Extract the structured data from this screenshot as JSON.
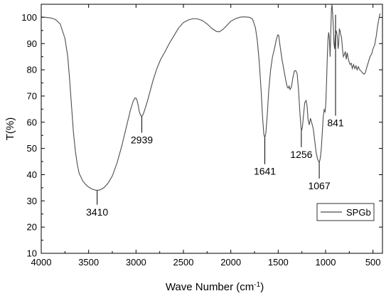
{
  "chart_data": {
    "type": "line",
    "title": "",
    "xlabel": "Wave Number (cm⁻¹)",
    "ylabel": "T(%)",
    "xlim": [
      4000,
      400
    ],
    "ylim": [
      10,
      105
    ],
    "x_ticks": [
      4000,
      3500,
      3000,
      2500,
      2000,
      1500,
      1000,
      500
    ],
    "y_ticks": [
      10,
      20,
      30,
      40,
      50,
      60,
      70,
      80,
      90,
      100
    ],
    "x_inverted": true,
    "grid": false,
    "legend_position": "right",
    "series": [
      {
        "name": "SPGb",
        "color": "#4d4d4d",
        "points": [
          [
            4000,
            100.2
          ],
          [
            3950,
            100.0
          ],
          [
            3900,
            99.8
          ],
          [
            3850,
            99.2
          ],
          [
            3800,
            97.5
          ],
          [
            3750,
            92.0
          ],
          [
            3720,
            85.0
          ],
          [
            3700,
            76.0
          ],
          [
            3680,
            66.0
          ],
          [
            3660,
            56.0
          ],
          [
            3640,
            49.0
          ],
          [
            3620,
            44.0
          ],
          [
            3600,
            40.5
          ],
          [
            3560,
            37.5
          ],
          [
            3520,
            35.8
          ],
          [
            3480,
            34.8
          ],
          [
            3440,
            34.2
          ],
          [
            3410,
            34.0
          ],
          [
            3380,
            34.2
          ],
          [
            3340,
            35.0
          ],
          [
            3300,
            36.5
          ],
          [
            3250,
            39.5
          ],
          [
            3200,
            44.5
          ],
          [
            3150,
            51.0
          ],
          [
            3100,
            58.5
          ],
          [
            3060,
            64.5
          ],
          [
            3030,
            68.0
          ],
          [
            3010,
            69.3
          ],
          [
            2995,
            69.0
          ],
          [
            2980,
            67.0
          ],
          [
            2965,
            64.0
          ],
          [
            2950,
            62.5
          ],
          [
            2939,
            62.3
          ],
          [
            2925,
            63.0
          ],
          [
            2910,
            64.5
          ],
          [
            2880,
            68.0
          ],
          [
            2850,
            72.0
          ],
          [
            2820,
            76.0
          ],
          [
            2780,
            80.5
          ],
          [
            2740,
            84.0
          ],
          [
            2700,
            86.5
          ],
          [
            2650,
            90.0
          ],
          [
            2600,
            93.0
          ],
          [
            2550,
            96.0
          ],
          [
            2500,
            98.0
          ],
          [
            2450,
            99.0
          ],
          [
            2400,
            99.5
          ],
          [
            2350,
            99.4
          ],
          [
            2300,
            98.8
          ],
          [
            2250,
            97.5
          ],
          [
            2200,
            95.8
          ],
          [
            2150,
            94.6
          ],
          [
            2120,
            94.5
          ],
          [
            2080,
            95.5
          ],
          [
            2040,
            97.0
          ],
          [
            2000,
            98.5
          ],
          [
            1950,
            99.5
          ],
          [
            1900,
            100.1
          ],
          [
            1850,
            100.2
          ],
          [
            1800,
            100.0
          ],
          [
            1770,
            99.3
          ],
          [
            1740,
            96.0
          ],
          [
            1720,
            91.0
          ],
          [
            1700,
            83.0
          ],
          [
            1680,
            72.0
          ],
          [
            1665,
            62.0
          ],
          [
            1652,
            55.5
          ],
          [
            1641,
            54.0
          ],
          [
            1630,
            56.0
          ],
          [
            1615,
            63.0
          ],
          [
            1600,
            72.0
          ],
          [
            1580,
            80.0
          ],
          [
            1560,
            85.0
          ],
          [
            1540,
            88.0
          ],
          [
            1520,
            91.5
          ],
          [
            1505,
            93.3
          ],
          [
            1495,
            93.2
          ],
          [
            1480,
            89.0
          ],
          [
            1460,
            84.0
          ],
          [
            1440,
            80.0
          ],
          [
            1420,
            76.0
          ],
          [
            1405,
            73.5
          ],
          [
            1395,
            73.0
          ],
          [
            1385,
            73.8
          ],
          [
            1375,
            72.5
          ],
          [
            1360,
            73.5
          ],
          [
            1345,
            77.0
          ],
          [
            1330,
            79.5
          ],
          [
            1315,
            79.7
          ],
          [
            1300,
            78.5
          ],
          [
            1285,
            72.0
          ],
          [
            1270,
            63.0
          ],
          [
            1256,
            56.5
          ],
          [
            1245,
            58.0
          ],
          [
            1235,
            62.0
          ],
          [
            1220,
            67.5
          ],
          [
            1205,
            68.3
          ],
          [
            1195,
            66.0
          ],
          [
            1185,
            61.0
          ],
          [
            1172,
            59.0
          ],
          [
            1160,
            61.5
          ],
          [
            1148,
            60.0
          ],
          [
            1130,
            57.5
          ],
          [
            1115,
            53.0
          ],
          [
            1100,
            48.5
          ],
          [
            1085,
            46.0
          ],
          [
            1067,
            44.5
          ],
          [
            1055,
            46.5
          ],
          [
            1045,
            50.0
          ],
          [
            1035,
            56.0
          ],
          [
            1025,
            62.0
          ],
          [
            1015,
            64.8
          ],
          [
            1005,
            64.0
          ],
          [
            998,
            67.0
          ],
          [
            990,
            75.0
          ],
          [
            982,
            85.0
          ],
          [
            975,
            91.5
          ],
          [
            968,
            94.3
          ],
          [
            960,
            92.0
          ],
          [
            952,
            85.0
          ],
          [
            945,
            95.0
          ],
          [
            938,
            103.5
          ],
          [
            932,
            104.8
          ],
          [
            925,
            101.0
          ],
          [
            918,
            96.0
          ],
          [
            912,
            90.0
          ],
          [
            905,
            88.0
          ],
          [
            898,
            93.0
          ],
          [
            890,
            95.0
          ],
          [
            882,
            94.0
          ],
          [
            875,
            92.0
          ],
          [
            868,
            88.0
          ],
          [
            862,
            90.0
          ],
          [
            855,
            95.5
          ],
          [
            848,
            95.0
          ],
          [
            841,
            93.5
          ],
          [
            832,
            92.5
          ],
          [
            822,
            88.0
          ],
          [
            812,
            85.0
          ],
          [
            800,
            86.0
          ],
          [
            792,
            87.0
          ],
          [
            782,
            84.0
          ],
          [
            772,
            86.5
          ],
          [
            762,
            84.5
          ],
          [
            752,
            83.0
          ],
          [
            742,
            82.0
          ],
          [
            730,
            82.5
          ],
          [
            718,
            80.5
          ],
          [
            705,
            82.0
          ],
          [
            692,
            80.5
          ],
          [
            680,
            81.5
          ],
          [
            668,
            80.0
          ],
          [
            655,
            81.2
          ],
          [
            640,
            80.0
          ],
          [
            625,
            79.5
          ],
          [
            610,
            78.8
          ],
          [
            595,
            78.3
          ],
          [
            580,
            79.0
          ],
          [
            565,
            81.0
          ],
          [
            548,
            83.0
          ],
          [
            532,
            85.0
          ],
          [
            515,
            86.0
          ],
          [
            500,
            88.0
          ],
          [
            482,
            89.5
          ],
          [
            465,
            93.0
          ],
          [
            450,
            97.0
          ],
          [
            435,
            100.0
          ],
          [
            425,
            101.5
          ]
        ]
      }
    ],
    "annotations": [
      {
        "text": "3410",
        "x": 3410,
        "y_from": 34.0,
        "y_to": 28.5
      },
      {
        "text": "2939",
        "x": 2939,
        "y_from": 62.3,
        "y_to": 56.0
      },
      {
        "text": "1641",
        "x": 1641,
        "y_from": 54.0,
        "y_to": 44.0
      },
      {
        "text": "1256",
        "x": 1256,
        "y_from": 56.5,
        "y_to": 50.5
      },
      {
        "text": "1067",
        "x": 1067,
        "y_from": 44.5,
        "y_to": 38.5
      },
      {
        "text": "841",
        "x": 895,
        "y_from": 101.0,
        "y_to": 62.5
      }
    ]
  }
}
